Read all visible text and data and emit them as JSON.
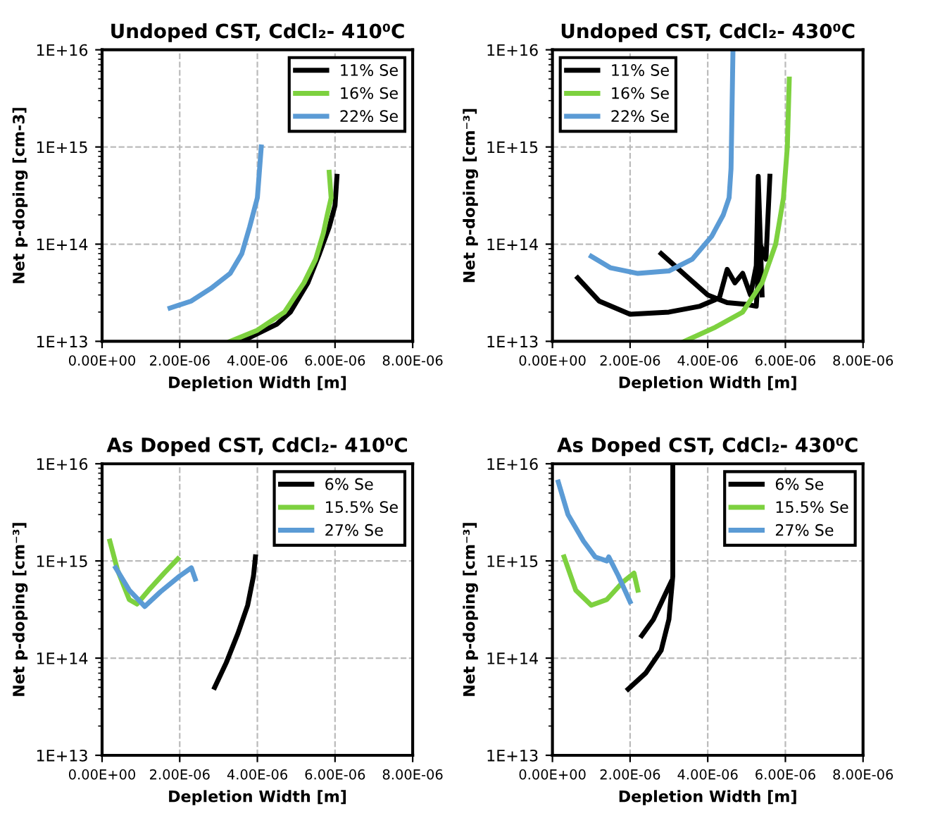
{
  "chart_data": [
    {
      "type": "line",
      "title": "Undoped CST, CdCl₂- 410⁰C",
      "xlabel": "Depletion Width [m]",
      "ylabel": "Net p-doping [cm-3]",
      "log": "y",
      "grid": true,
      "legend": "top right",
      "xlim": [
        0,
        8e-06
      ],
      "xticks": [
        {
          "value": 0,
          "label": "0.00E+00"
        },
        {
          "value": 2e-06,
          "label": "2.00E-06"
        },
        {
          "value": 4e-06,
          "label": "4.00E-06"
        },
        {
          "value": 6e-06,
          "label": "6.00E-06"
        },
        {
          "value": 8e-06,
          "label": "8.00E-06"
        }
      ],
      "ylim": [
        10000000000000.0,
        1e+16
      ],
      "yticks": [
        {
          "value": 10000000000000.0,
          "label": "1E+13"
        },
        {
          "value": 100000000000000.0,
          "label": "1E+14"
        },
        {
          "value": 1000000000000000.0,
          "label": "1E+15"
        },
        {
          "value": 1e+16,
          "label": "1E+16"
        }
      ],
      "series": [
        {
          "name": "11% Se",
          "color": "#000000",
          "x": [
            3.6e-06,
            4.5e-06,
            4.85e-06,
            5.3e-06,
            5.6e-06,
            5.85e-06,
            6e-06,
            6.05e-06
          ],
          "values": [
            10000000000000.0,
            15000000000000.0,
            20000000000000.0,
            40000000000000.0,
            80000000000000.0,
            150000000000000.0,
            250000000000000.0,
            500000000000000.0
          ]
        },
        {
          "name": "16% Se",
          "color": "#7dd13f",
          "x": [
            3.3e-06,
            4e-06,
            4.7e-06,
            5.2e-06,
            5.5e-06,
            5.7e-06,
            5.8e-06,
            5.9e-06,
            5.85e-06
          ],
          "values": [
            10000000000000.0,
            13000000000000.0,
            20000000000000.0,
            40000000000000.0,
            70000000000000.0,
            130000000000000.0,
            200000000000000.0,
            300000000000000.0,
            550000000000000.0
          ]
        },
        {
          "name": "22% Se",
          "color": "#5b9bd5",
          "x": [
            1.75e-06,
            2.3e-06,
            2.8e-06,
            3.3e-06,
            3.6e-06,
            3.8e-06,
            4e-06,
            4.1e-06
          ],
          "values": [
            22000000000000.0,
            26000000000000.0,
            35000000000000.0,
            50000000000000.0,
            80000000000000.0,
            150000000000000.0,
            300000000000000.0,
            1000000000000000.0
          ]
        }
      ]
    },
    {
      "type": "line",
      "title": "Undoped CST, CdCl₂- 430⁰C",
      "xlabel": "Depletion Width [m]",
      "ylabel": "Net p-doping [cm⁻³]",
      "log": "y",
      "grid": true,
      "legend": "top left",
      "xlim": [
        0,
        8e-06
      ],
      "xticks": [
        {
          "value": 0,
          "label": "0.00E+00"
        },
        {
          "value": 2e-06,
          "label": "2.00E-06"
        },
        {
          "value": 4e-06,
          "label": "4.00E-06"
        },
        {
          "value": 6e-06,
          "label": "6.00E-06"
        },
        {
          "value": 8e-06,
          "label": "8.00E-06"
        }
      ],
      "ylim": [
        10000000000000.0,
        1e+16
      ],
      "yticks": [
        {
          "value": 10000000000000.0,
          "label": "1E+13"
        },
        {
          "value": 100000000000000.0,
          "label": "1E+14"
        },
        {
          "value": 1000000000000000.0,
          "label": "1E+15"
        },
        {
          "value": 1e+16,
          "label": "1E+16"
        }
      ],
      "series": [
        {
          "name": "11% Se",
          "color": "#000000",
          "x": [
            6.5e-07,
            1.2e-06,
            2e-06,
            3e-06,
            3.8e-06,
            4.3e-06,
            4.5e-06,
            4.7e-06,
            4.9e-06,
            5.1e-06,
            5.25e-06,
            5.3e-06,
            5.4e-06,
            null,
            2.8e-06,
            3.5e-06,
            4e-06,
            4.5e-06,
            5e-06,
            5.25e-06,
            5.35e-06,
            5.5e-06,
            5.6e-06
          ],
          "values": [
            45000000000000.0,
            26000000000000.0,
            19000000000000.0,
            20000000000000.0,
            23000000000000.0,
            28000000000000.0,
            55000000000000.0,
            40000000000000.0,
            50000000000000.0,
            30000000000000.0,
            60000000000000.0,
            500000000000000.0,
            30000000000000.0,
            null,
            80000000000000.0,
            45000000000000.0,
            30000000000000.0,
            25000000000000.0,
            24000000000000.0,
            23000000000000.0,
            100000000000000.0,
            70000000000000.0,
            500000000000000.0
          ]
        },
        {
          "name": "16% Se",
          "color": "#7dd13f",
          "x": [
            3.4e-06,
            4.2e-06,
            4.9e-06,
            5.4e-06,
            5.75e-06,
            5.95e-06,
            6.05e-06,
            6.1e-06
          ],
          "values": [
            10000000000000.0,
            14000000000000.0,
            20000000000000.0,
            40000000000000.0,
            100000000000000.0,
            300000000000000.0,
            1000000000000000.0,
            5000000000000000.0
          ]
        },
        {
          "name": "22% Se",
          "color": "#5b9bd5",
          "x": [
            1e-06,
            1.5e-06,
            2.2e-06,
            3e-06,
            3.6e-06,
            4.1e-06,
            4.4e-06,
            4.55e-06,
            4.6e-06,
            4.65e-06
          ],
          "values": [
            75000000000000.0,
            57000000000000.0,
            50000000000000.0,
            53000000000000.0,
            70000000000000.0,
            120000000000000.0,
            200000000000000.0,
            300000000000000.0,
            600000000000000.0,
            1e+16
          ]
        }
      ]
    },
    {
      "type": "line",
      "title": "As Doped CST, CdCl₂- 410⁰C",
      "xlabel": "Depletion Width [m]",
      "ylabel": "Net p-doping [cm⁻³]",
      "log": "y",
      "grid": true,
      "legend": "top right",
      "xlim": [
        0,
        8e-06
      ],
      "xticks": [
        {
          "value": 0,
          "label": "0.00E+00"
        },
        {
          "value": 2e-06,
          "label": "2.00E-06"
        },
        {
          "value": 4e-06,
          "label": "4.00E-06"
        },
        {
          "value": 6e-06,
          "label": "6.00E-06"
        },
        {
          "value": 8e-06,
          "label": "8.00E-06"
        }
      ],
      "ylim": [
        10000000000000.0,
        1e+16
      ],
      "yticks": [
        {
          "value": 10000000000000.0,
          "label": "1E+13"
        },
        {
          "value": 100000000000000.0,
          "label": "1E+14"
        },
        {
          "value": 1000000000000000.0,
          "label": "1E+15"
        },
        {
          "value": 1e+16,
          "label": "1E+16"
        }
      ],
      "series": [
        {
          "name": "6% Se",
          "color": "#000000",
          "x": [
            2.9e-06,
            3.2e-06,
            3.5e-06,
            3.75e-06,
            3.9e-06,
            3.95e-06
          ],
          "values": [
            50000000000000.0,
            90000000000000.0,
            180000000000000.0,
            350000000000000.0,
            700000000000000.0,
            1100000000000000.0
          ]
        },
        {
          "name": "15.5% Se",
          "color": "#7dd13f",
          "x": [
            2e-07,
            4e-07,
            7e-07,
            9e-07,
            1.2e-06,
            1.6e-06,
            1.95e-06
          ],
          "values": [
            1600000000000000.0,
            800000000000000.0,
            400000000000000.0,
            360000000000000.0,
            500000000000000.0,
            750000000000000.0,
            1050000000000000.0
          ]
        },
        {
          "name": "27% Se",
          "color": "#5b9bd5",
          "x": [
            3.5e-07,
            7e-07,
            1.1e-06,
            1.5e-06,
            2e-06,
            2.3e-06,
            2.4e-06
          ],
          "values": [
            850000000000000.0,
            500000000000000.0,
            340000000000000.0,
            480000000000000.0,
            700000000000000.0,
            850000000000000.0,
            650000000000000.0
          ]
        }
      ]
    },
    {
      "type": "line",
      "title": "As Doped CST, CdCl₂- 430⁰C",
      "xlabel": "Depletion Width [m]",
      "ylabel": "Net p-doping [cm⁻³]",
      "log": "y",
      "grid": true,
      "legend": "top right",
      "xlim": [
        0,
        8e-06
      ],
      "xticks": [
        {
          "value": 0,
          "label": "0.00E+00"
        },
        {
          "value": 2e-06,
          "label": "2.00E-06"
        },
        {
          "value": 4e-06,
          "label": "4.00E-06"
        },
        {
          "value": 6e-06,
          "label": "6.00E-06"
        },
        {
          "value": 8e-06,
          "label": "8.00E-06"
        }
      ],
      "ylim": [
        10000000000000.0,
        1e+16
      ],
      "yticks": [
        {
          "value": 10000000000000.0,
          "label": "1E+13"
        },
        {
          "value": 100000000000000.0,
          "label": "1E+14"
        },
        {
          "value": 1000000000000000.0,
          "label": "1E+15"
        },
        {
          "value": 1e+16,
          "label": "1E+16"
        }
      ],
      "series": [
        {
          "name": "6% Se",
          "color": "#000000",
          "x": [
            1.95e-06,
            2.4e-06,
            2.8e-06,
            3e-06,
            3.1e-06,
            3.1e-06,
            null,
            2.3e-06,
            2.6e-06,
            2.9e-06,
            3.05e-06
          ],
          "values": [
            48000000000000.0,
            70000000000000.0,
            120000000000000.0,
            250000000000000.0,
            700000000000000.0,
            1e+16,
            null,
            170000000000000.0,
            250000000000000.0,
            450000000000000.0,
            600000000000000.0
          ]
        },
        {
          "name": "15.5% Se",
          "color": "#7dd13f",
          "x": [
            3e-07,
            6e-07,
            1e-06,
            1.4e-06,
            1.8e-06,
            2.1e-06,
            2.2e-06
          ],
          "values": [
            1100000000000000.0,
            500000000000000.0,
            350000000000000.0,
            400000000000000.0,
            600000000000000.0,
            750000000000000.0,
            500000000000000.0
          ]
        },
        {
          "name": "27% Se",
          "color": "#5b9bd5",
          "x": [
            1.5e-07,
            4e-07,
            8e-07,
            1.1e-06,
            1.4e-06,
            1.45e-06,
            1.7e-06,
            2e-06
          ],
          "values": [
            6500000000000000.0,
            3000000000000000.0,
            1600000000000000.0,
            1100000000000000.0,
            1000000000000000.0,
            1100000000000000.0,
            700000000000000.0,
            380000000000000.0
          ]
        }
      ]
    }
  ]
}
